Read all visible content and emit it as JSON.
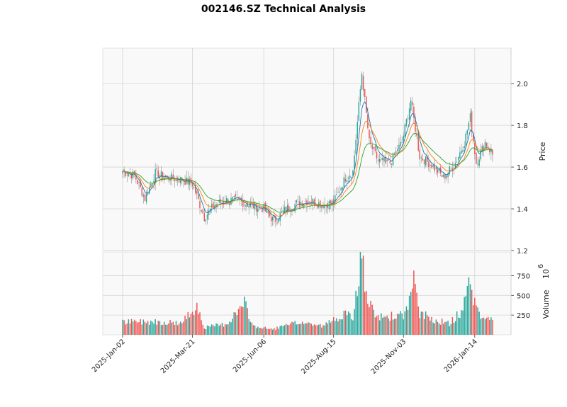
{
  "chart_data": {
    "type": "candlestick",
    "title": "002146.SZ Technical Analysis",
    "price_panel": {
      "ylabel": "Price",
      "ylim": [
        1.2,
        2.17
      ],
      "yticks": [
        "1.2",
        "1.4",
        "1.6",
        "1.8",
        "2.0"
      ],
      "grid": true,
      "moving_averages": [
        "short (blue)",
        "medium (orange)",
        "long (green)"
      ]
    },
    "volume_panel": {
      "ylabel": "Volume",
      "exponent": "6",
      "ylim": [
        0,
        1050
      ],
      "yticks": [
        "250",
        "500",
        "750"
      ],
      "grid": true
    },
    "x_tick_labels": [
      "2025-Jan-02",
      "2025-Mar-21",
      "2025-Jun-06",
      "2025-Aug-15",
      "2025-Nov-03",
      "2026-Jan-14"
    ],
    "x_tick_days": [
      0,
      47,
      95,
      142,
      189,
      237
    ],
    "n_days": 250,
    "anchors": [
      [
        0,
        1.58
      ],
      [
        8,
        1.56
      ],
      [
        15,
        1.45
      ],
      [
        22,
        1.57
      ],
      [
        30,
        1.55
      ],
      [
        40,
        1.54
      ],
      [
        47,
        1.52
      ],
      [
        55,
        1.36
      ],
      [
        62,
        1.42
      ],
      [
        70,
        1.44
      ],
      [
        78,
        1.44
      ],
      [
        85,
        1.42
      ],
      [
        95,
        1.4
      ],
      [
        102,
        1.34
      ],
      [
        110,
        1.4
      ],
      [
        118,
        1.43
      ],
      [
        126,
        1.44
      ],
      [
        134,
        1.42
      ],
      [
        142,
        1.43
      ],
      [
        150,
        1.55
      ],
      [
        155,
        1.58
      ],
      [
        161,
        2.05
      ],
      [
        166,
        1.72
      ],
      [
        172,
        1.63
      ],
      [
        180,
        1.62
      ],
      [
        188,
        1.72
      ],
      [
        194,
        1.92
      ],
      [
        200,
        1.65
      ],
      [
        208,
        1.61
      ],
      [
        216,
        1.55
      ],
      [
        224,
        1.62
      ],
      [
        230,
        1.72
      ],
      [
        234,
        1.84
      ],
      [
        238,
        1.62
      ],
      [
        244,
        1.72
      ],
      [
        249,
        1.66
      ]
    ],
    "volume_anchors": [
      [
        0,
        160
      ],
      [
        20,
        170
      ],
      [
        40,
        150
      ],
      [
        50,
        380
      ],
      [
        55,
        90
      ],
      [
        70,
        140
      ],
      [
        82,
        390
      ],
      [
        88,
        110
      ],
      [
        100,
        70
      ],
      [
        120,
        160
      ],
      [
        135,
        110
      ],
      [
        148,
        260
      ],
      [
        155,
        220
      ],
      [
        161,
        1010
      ],
      [
        164,
        480
      ],
      [
        170,
        220
      ],
      [
        190,
        250
      ],
      [
        196,
        660
      ],
      [
        200,
        270
      ],
      [
        210,
        190
      ],
      [
        220,
        140
      ],
      [
        228,
        300
      ],
      [
        234,
        690
      ],
      [
        238,
        300
      ],
      [
        245,
        200
      ],
      [
        249,
        190
      ]
    ],
    "colors": {
      "up": "#26a69a",
      "down": "#ef5350",
      "ma_short": "#1f77b4",
      "ma_medium": "#ff7f0e",
      "ma_long": "#2ca02c",
      "panel_bg": "#f9f9f9",
      "grid": "#d3d3d3"
    }
  }
}
